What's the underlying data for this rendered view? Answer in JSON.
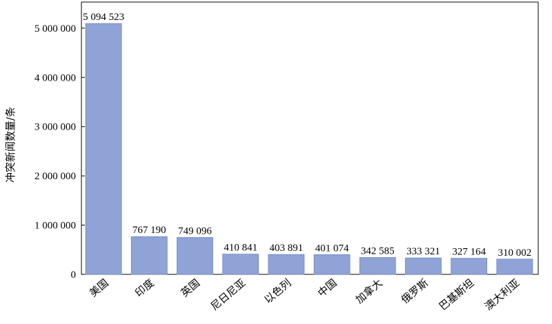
{
  "chart_data": {
    "type": "bar",
    "title": "",
    "xlabel": "",
    "ylabel": "冲突新闻数量/条",
    "categories": [
      "美国",
      "印度",
      "英国",
      "尼日尼亚",
      "以色列",
      "中国",
      "加拿大",
      "俄罗斯",
      "巴基斯坦",
      "澳大利亚"
    ],
    "values": [
      5094523,
      767190,
      749096,
      410841,
      403891,
      401074,
      342585,
      333321,
      327164,
      310002
    ],
    "data_labels": [
      "5 094 523",
      "767 190",
      "749 096",
      "410 841",
      "403 891",
      "401 074",
      "342 585",
      "333 321",
      "327 164",
      "310 002"
    ],
    "y_ticks": [
      0,
      1000000,
      2000000,
      3000000,
      4000000,
      5000000
    ],
    "y_tick_labels": [
      "0",
      "1 000 000",
      "2 000 000",
      "3 000 000",
      "4 000 000",
      "5 000 000"
    ],
    "ylim": [
      0,
      5530000
    ],
    "grid": false,
    "bar_color": "#8fa3d6",
    "bar_stroke": "#6f86c4"
  }
}
